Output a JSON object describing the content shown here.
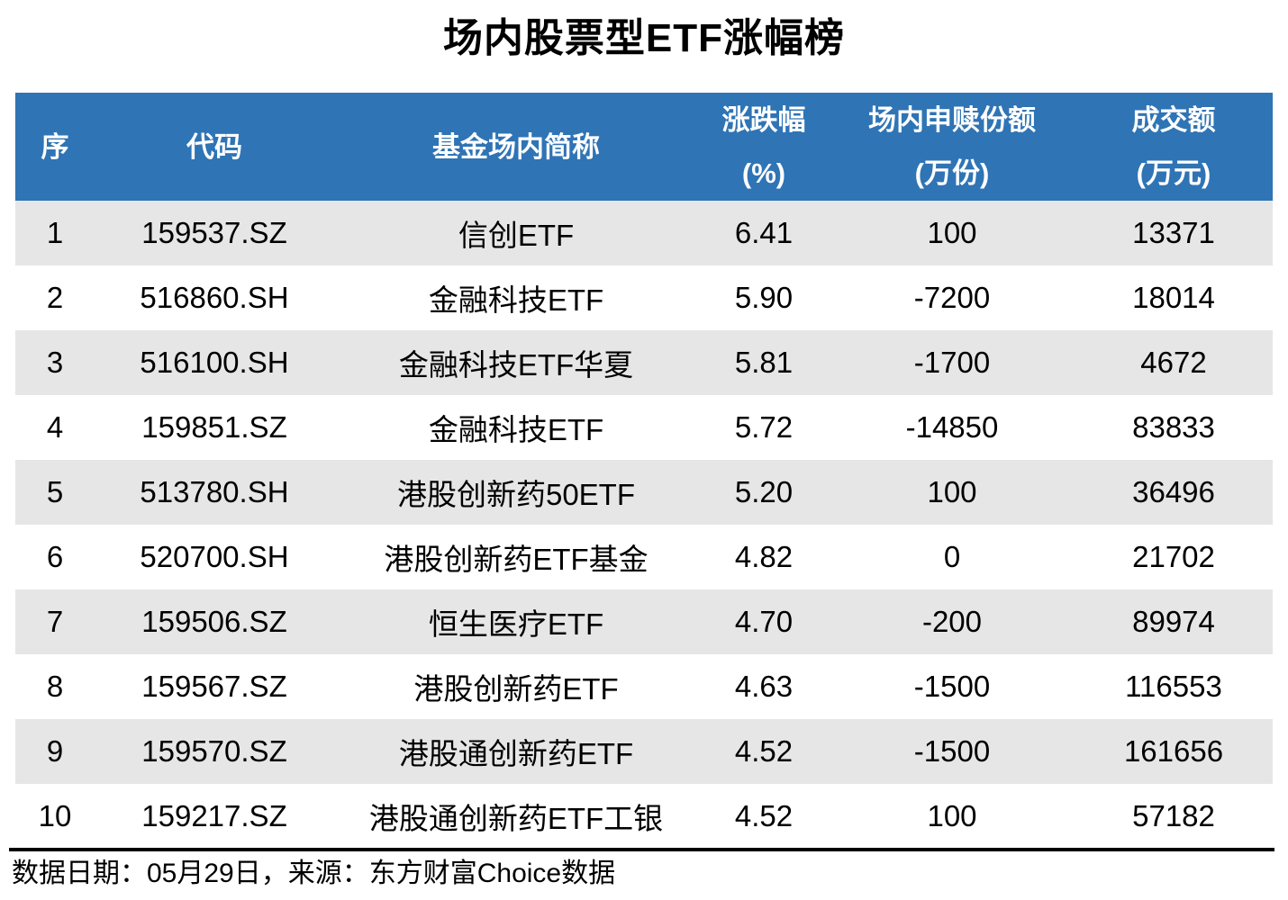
{
  "title": "场内股票型ETF涨幅榜",
  "chart_data": {
    "type": "table",
    "title": "场内股票型ETF涨幅榜",
    "columns": [
      {
        "label": "序",
        "sub": ""
      },
      {
        "label": "代码",
        "sub": ""
      },
      {
        "label": "基金场内简称",
        "sub": ""
      },
      {
        "label": "涨跌幅",
        "sub": "(%)"
      },
      {
        "label": "场内申赎份额",
        "sub": "(万份)"
      },
      {
        "label": "成交额",
        "sub": "(万元)"
      }
    ],
    "rows": [
      [
        "1",
        "159537.SZ",
        "信创ETF",
        "6.41",
        "100",
        "13371"
      ],
      [
        "2",
        "516860.SH",
        "金融科技ETF",
        "5.90",
        "-7200",
        "18014"
      ],
      [
        "3",
        "516100.SH",
        "金融科技ETF华夏",
        "5.81",
        "-1700",
        "4672"
      ],
      [
        "4",
        "159851.SZ",
        "金融科技ETF",
        "5.72",
        "-14850",
        "83833"
      ],
      [
        "5",
        "513780.SH",
        "港股创新药50ETF",
        "5.20",
        "100",
        "36496"
      ],
      [
        "6",
        "520700.SH",
        "港股创新药ETF基金",
        "4.82",
        "0",
        "21702"
      ],
      [
        "7",
        "159506.SZ",
        "恒生医疗ETF",
        "4.70",
        "-200",
        "89974"
      ],
      [
        "8",
        "159567.SZ",
        "港股创新药ETF",
        "4.63",
        "-1500",
        "116553"
      ],
      [
        "9",
        "159570.SZ",
        "港股通创新药ETF",
        "4.52",
        "-1500",
        "161656"
      ],
      [
        "10",
        "159217.SZ",
        "港股通创新药ETF工银",
        "4.52",
        "100",
        "57182"
      ]
    ]
  },
  "footer": {
    "source_note": "数据日期：05月29日，来源：东方财富Choice数据"
  },
  "colors": {
    "header_bg": "#2F74B5",
    "header_text": "#FFFFFF",
    "stripe_bg": "#E7E6E6",
    "body_text": "#000000",
    "divider": "#000000"
  }
}
